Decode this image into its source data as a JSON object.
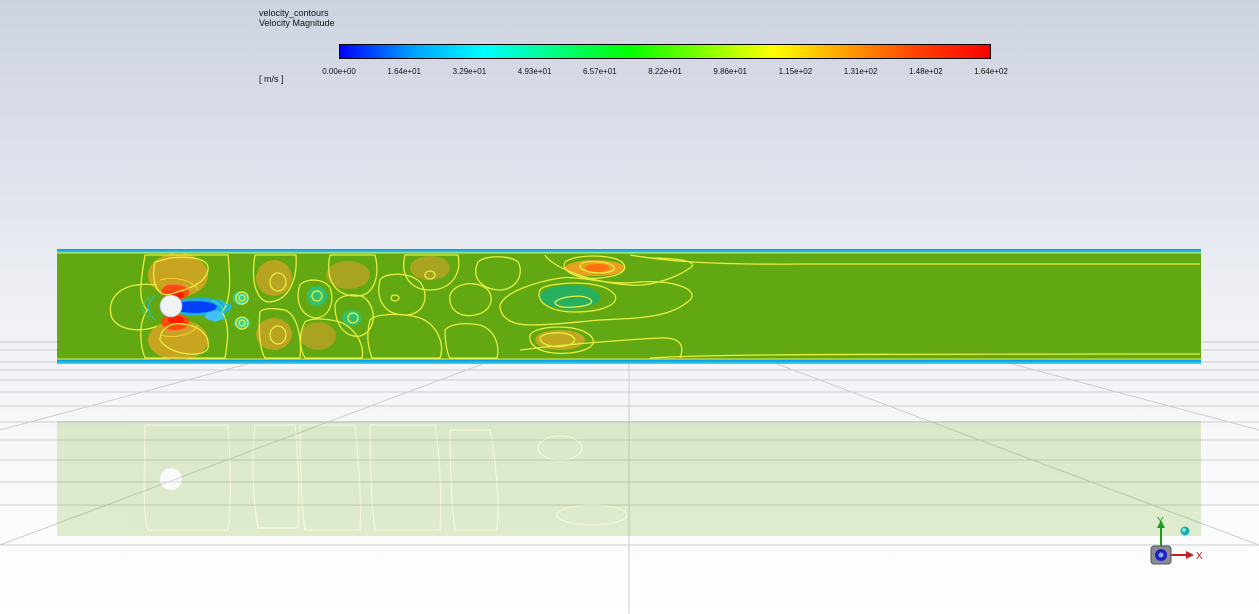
{
  "legend": {
    "name": "velocity_contours",
    "variable": "Velocity Magnitude",
    "unit": "[ m/s ]",
    "colormap": [
      "#0000ff",
      "#00a0ff",
      "#00ffff",
      "#00ff80",
      "#00ff00",
      "#80ff00",
      "#ffff00",
      "#ffa000",
      "#ff4000",
      "#ff0000"
    ],
    "ticks": [
      "0.00e+00",
      "1.64e+01",
      "3.29e+01",
      "4.93e+01",
      "6.57e+01",
      "8.22e+01",
      "9.86e+01",
      "1.15e+02",
      "1.31e+02",
      "1.48e+02",
      "1.64e+02"
    ]
  },
  "axes": {
    "x": "X",
    "y": "Y"
  },
  "colors": {
    "domain_fill": "#62a812",
    "contour_line": "#e8ee40",
    "wall": "#00c8e0",
    "cylinder": "#f0f2f6"
  }
}
